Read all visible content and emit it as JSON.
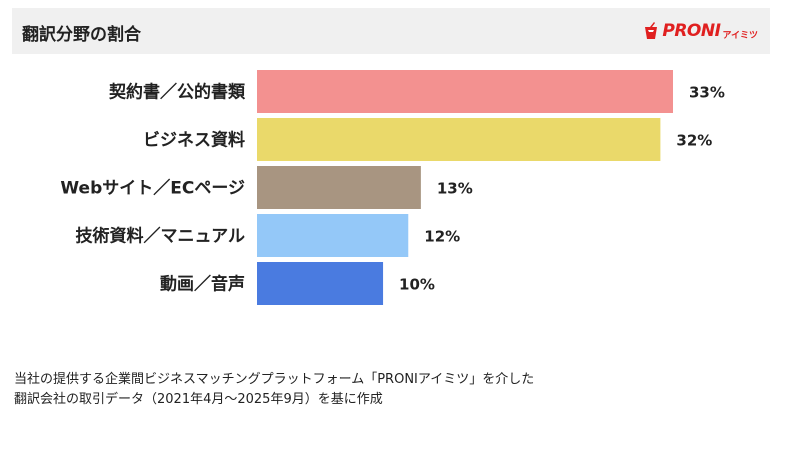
{
  "header": {
    "title": "翻訳分野の割合",
    "logo_text": "PRONI",
    "logo_sub": "アイミツ"
  },
  "chart_data": {
    "type": "bar",
    "orientation": "horizontal",
    "categories": [
      "契約書／公的書類",
      "ビジネス資料",
      "Webサイト／ECページ",
      "技術資料／マニュアル",
      "動画／音声"
    ],
    "values": [
      33,
      32,
      13,
      12,
      10
    ],
    "value_labels": [
      "33%",
      "32%",
      "13%",
      "12%",
      "10%"
    ],
    "colors": [
      "#f39190",
      "#ead96a",
      "#a89581",
      "#94c8f8",
      "#4a7be0"
    ],
    "xlim": [
      0,
      33
    ],
    "grid": false,
    "legend": "none"
  },
  "footnote": {
    "line1": "当社の提供する企業間ビジネスマッチングプラットフォーム「PRONIアイミツ」を介した",
    "line2": "翻訳会社の取引データ（2021年4月〜2025年9月）を基に作成"
  }
}
